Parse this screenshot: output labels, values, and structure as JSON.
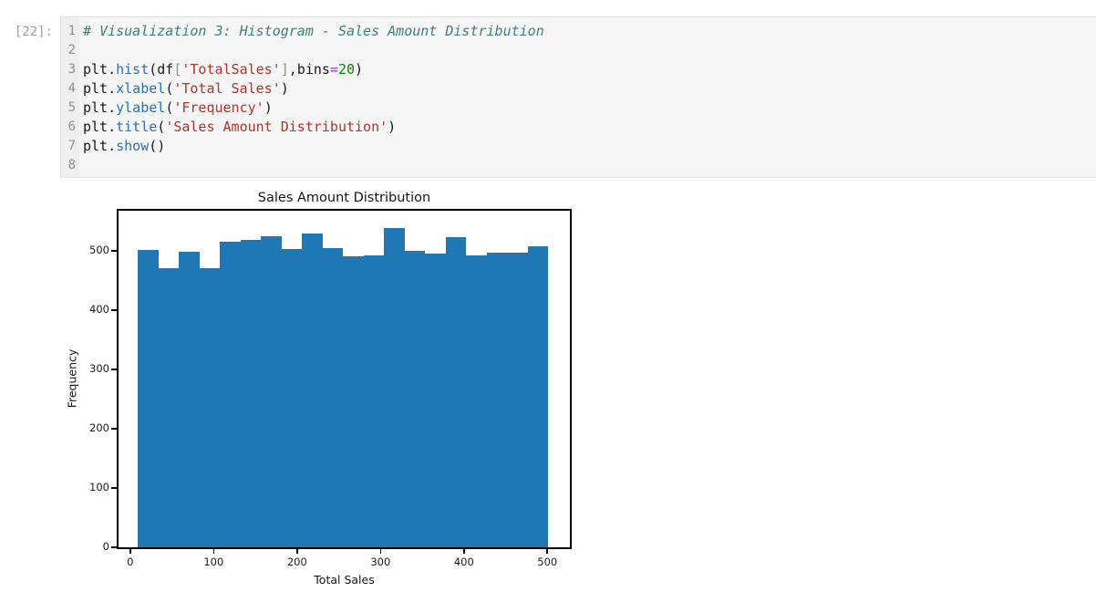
{
  "cell": {
    "prompt": "[22]:",
    "line_numbers": [
      "1",
      "2",
      "3",
      "4",
      "5",
      "6",
      "7",
      "8"
    ],
    "code_lines": [
      [
        {
          "t": "# Visualization 3: Histogram - Sales Amount Distribution",
          "s": "com"
        }
      ],
      [],
      [
        {
          "t": "plt.",
          "s": "pln"
        },
        {
          "t": "hist",
          "s": "fn"
        },
        {
          "t": "(df",
          "s": "pln"
        },
        {
          "t": "[",
          "s": "brk"
        },
        {
          "t": "'TotalSales'",
          "s": "str"
        },
        {
          "t": "]",
          "s": "brk"
        },
        {
          "t": ",bins",
          "s": "pln"
        },
        {
          "t": "=",
          "s": "op"
        },
        {
          "t": "20",
          "s": "num"
        },
        {
          "t": ")",
          "s": "pln"
        }
      ],
      [
        {
          "t": "plt.",
          "s": "pln"
        },
        {
          "t": "xlabel",
          "s": "fn"
        },
        {
          "t": "(",
          "s": "pln"
        },
        {
          "t": "'Total Sales'",
          "s": "str"
        },
        {
          "t": ")",
          "s": "pln"
        }
      ],
      [
        {
          "t": "plt.",
          "s": "pln"
        },
        {
          "t": "ylabel",
          "s": "fn"
        },
        {
          "t": "(",
          "s": "pln"
        },
        {
          "t": "'Frequency'",
          "s": "str"
        },
        {
          "t": ")",
          "s": "pln"
        }
      ],
      [
        {
          "t": "plt.",
          "s": "pln"
        },
        {
          "t": "title",
          "s": "fn"
        },
        {
          "t": "(",
          "s": "pln"
        },
        {
          "t": "'Sales Amount Distribution'",
          "s": "str"
        },
        {
          "t": ")",
          "s": "pln"
        }
      ],
      [
        {
          "t": "plt.",
          "s": "pln"
        },
        {
          "t": "show",
          "s": "fn"
        },
        {
          "t": "()",
          "s": "pln"
        }
      ],
      []
    ]
  },
  "chart_data": {
    "type": "bar",
    "subtype": "histogram",
    "title": "Sales Amount Distribution",
    "xlabel": "Total Sales",
    "ylabel": "Frequency",
    "bins": 20,
    "bin_start": 9,
    "bin_width": 24.6,
    "counts": [
      502,
      471,
      499,
      471,
      515,
      519,
      525,
      503,
      530,
      505,
      491,
      493,
      539,
      501,
      496,
      524,
      493,
      497,
      497,
      508
    ],
    "xticks": [
      0,
      100,
      200,
      300,
      400,
      500
    ],
    "yticks": [
      0,
      100,
      200,
      300,
      400,
      500
    ],
    "xlim": [
      -14,
      527
    ],
    "ylim": [
      0,
      568
    ],
    "grid": false,
    "bar_color": "#1f77b4"
  },
  "colors": {
    "bar": "#1f77b4",
    "comment": "#3d8080",
    "string": "#b03428",
    "function": "#2a72b9",
    "operator": "#aa22ff",
    "number": "#008800",
    "bracket": "#95917e",
    "line_number": "#8f8f8f",
    "prompt": "#9d9d9d",
    "cell_background": "#f6f6f6",
    "gutter_background": "#efefef"
  }
}
